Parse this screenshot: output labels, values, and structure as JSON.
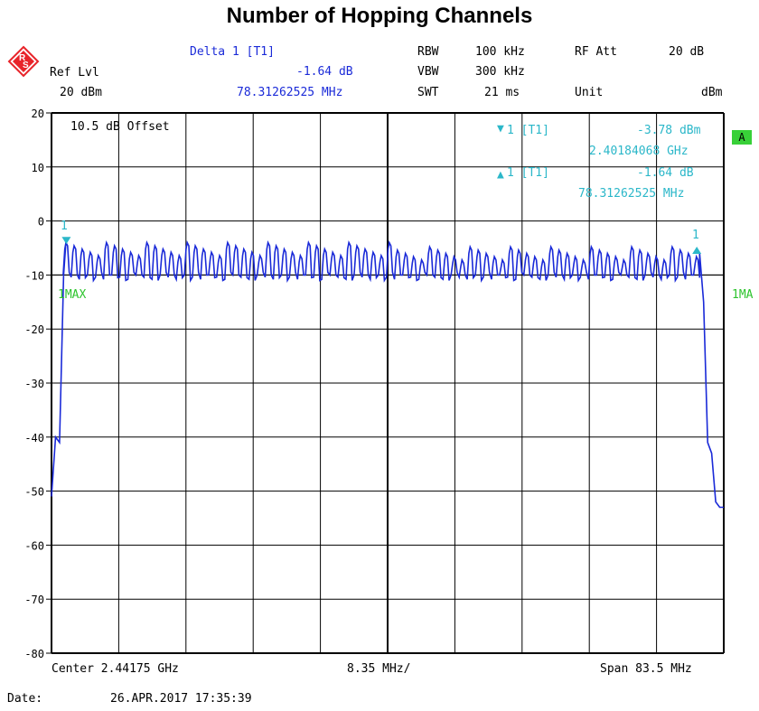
{
  "title": "Number of Hopping Channels",
  "header": {
    "delta_label": "Delta 1 [T1]",
    "delta_level": "-1.64 dB",
    "delta_freq": "78.31262525 MHz",
    "ref_lvl_label": "Ref Lvl",
    "ref_lvl_value": "20 dBm",
    "rbw_label": "RBW",
    "rbw_value": "100 kHz",
    "vbw_label": "VBW",
    "vbw_value": "300 kHz",
    "swt_label": "SWT",
    "swt_value": "21 ms",
    "rf_att_label": "RF Att",
    "rf_att_value": "20 dB",
    "unit_label": "Unit",
    "unit_value": "dBm"
  },
  "markers": {
    "m1_label": "1 [T1]",
    "m1_level": "-3.78 dBm",
    "m1_freq": "2.40184068 GHz",
    "d1_label": "1 [T1]",
    "d1_level": "-1.64 dB",
    "d1_freq": "78.31262525 MHz",
    "m1_num": "1",
    "d1_num": "1"
  },
  "offset_text": "10.5 dB Offset",
  "trace_left": "1MAX",
  "trace_right": "1MA",
  "side_marker": "A",
  "footer": {
    "center": "Center 2.44175 GHz",
    "div": "8.35 MHz/",
    "span": "Span 83.5 MHz",
    "date_label": "Date:",
    "date_value": "26.APR.2017  17:35:39"
  },
  "chart_data": {
    "type": "line",
    "xlabel": "",
    "ylabel": "",
    "x_unit": "GHz",
    "xlim": [
      2.4,
      2.4835
    ],
    "ylim": [
      -80,
      20
    ],
    "yticks": [
      20,
      10,
      0,
      -10,
      -20,
      -30,
      -40,
      -50,
      -60,
      -70,
      -80
    ],
    "grid": true,
    "series": [
      {
        "color": "#1a2ad8",
        "x": [
          2.4,
          2.4005,
          2.401,
          2.4015,
          2.4018,
          2.4025,
          2.41,
          2.42,
          2.43,
          2.44,
          2.45,
          2.46,
          2.47,
          2.48,
          2.4805,
          2.481,
          2.4815,
          2.482,
          2.4825,
          2.483,
          2.4835
        ],
        "y": [
          -51,
          -40,
          -41,
          -10,
          -3.8,
          -6,
          -5,
          -5,
          -5,
          -5,
          -6,
          -6,
          -6,
          -6,
          -6,
          -15,
          -41,
          -43,
          -52,
          -53,
          -53
        ]
      }
    ],
    "markers": [
      {
        "name": "1",
        "x": 2.40184068,
        "y": -3.78
      },
      {
        "name": "1",
        "x": 2.48015,
        "y": -5.42
      }
    ],
    "display_line": {
      "label": "1MAX",
      "y": -10
    }
  }
}
